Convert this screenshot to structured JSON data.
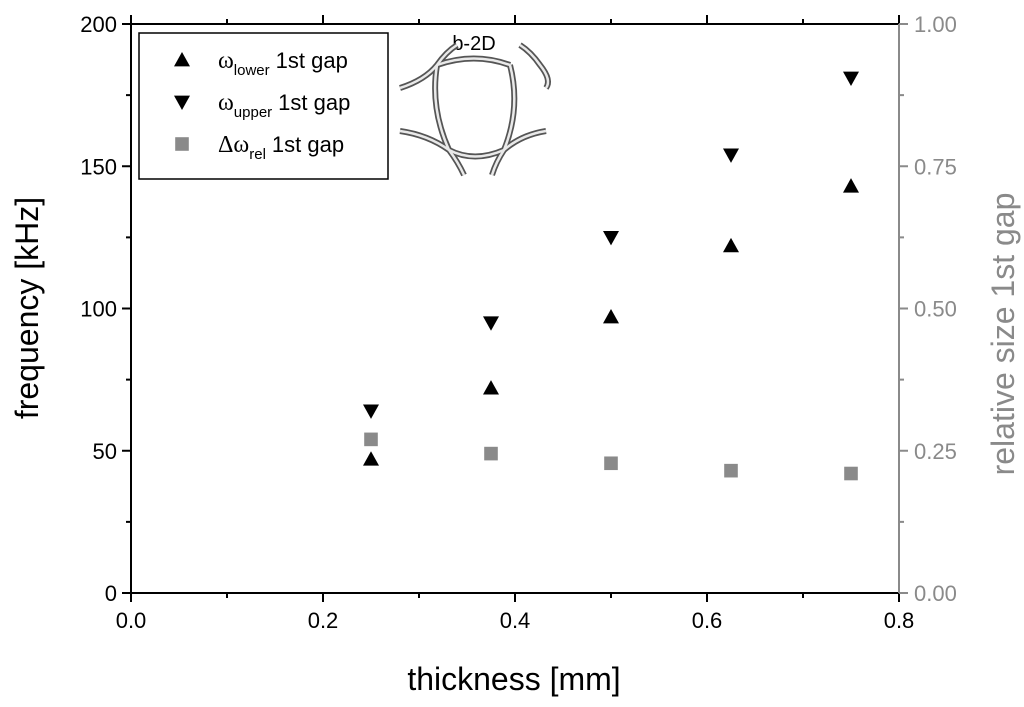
{
  "chart_data": {
    "type": "scatter",
    "xlabel": "thickness [mm]",
    "ylabel": "frequency [kHz]",
    "y2label": "relative size 1st gap",
    "xlim": [
      0.0,
      0.8
    ],
    "ylim": [
      0,
      200
    ],
    "y2lim": [
      0.0,
      1.0
    ],
    "x_ticks": [
      "0.0",
      "0.2",
      "0.4",
      "0.6",
      "0.8"
    ],
    "y_ticks": [
      "0",
      "50",
      "100",
      "150",
      "200"
    ],
    "y2_ticks": [
      "0.00",
      "0.25",
      "0.50",
      "0.75",
      "1.00"
    ],
    "inset_label": "b-2D",
    "legend_position": "top-left",
    "series": [
      {
        "name": "ωlower 1st gap",
        "symbol": "ω",
        "subscript": "lower",
        "suffix": "1st gap",
        "marker": "triangle-up",
        "color": "#000000",
        "axis": "left",
        "x": [
          0.25,
          0.375,
          0.5,
          0.625,
          0.75
        ],
        "values": [
          47,
          72,
          97,
          122,
          143
        ]
      },
      {
        "name": "ωupper 1st gap",
        "symbol": "ω",
        "subscript": "upper",
        "suffix": "1st gap",
        "marker": "triangle-down",
        "color": "#000000",
        "axis": "left",
        "x": [
          0.25,
          0.375,
          0.5,
          0.625,
          0.75
        ],
        "values": [
          64,
          95,
          125,
          154,
          181
        ]
      },
      {
        "name": "Δωrel 1st gap",
        "symbol": "Δω",
        "subscript": "rel",
        "suffix": "1st gap",
        "marker": "square",
        "color": "#8a8a8a",
        "axis": "right",
        "x": [
          0.25,
          0.375,
          0.5,
          0.625,
          0.75
        ],
        "values": [
          0.27,
          0.245,
          0.228,
          0.215,
          0.21
        ]
      }
    ]
  },
  "colors": {
    "primary_axis": "#000000",
    "secondary_axis": "#8a8a8a"
  }
}
